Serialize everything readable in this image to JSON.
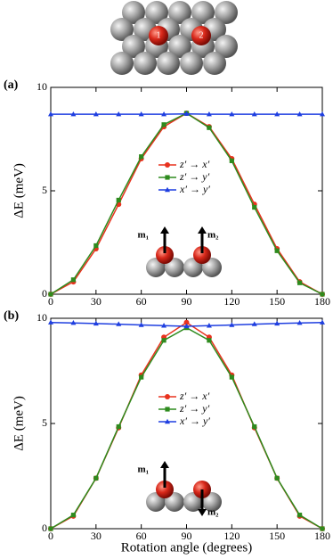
{
  "image": {
    "labels": [
      "1",
      "2"
    ]
  },
  "chart_data": [
    {
      "type": "line",
      "panel_label": "(a)",
      "ylabel": "ΔE (meV)",
      "x": [
        0,
        15,
        30,
        45,
        60,
        75,
        90,
        105,
        120,
        135,
        150,
        165,
        180
      ],
      "series": [
        {
          "name": "z′ → x′",
          "color": "#e8321e",
          "values": [
            0,
            0.6,
            2.2,
            4.35,
            6.55,
            8.1,
            8.75,
            8.1,
            6.55,
            4.35,
            2.2,
            0.6,
            0
          ]
        },
        {
          "name": "z′ → y′",
          "color": "#2e8b1e",
          "values": [
            0,
            0.7,
            2.35,
            4.55,
            6.65,
            8.2,
            8.75,
            8.05,
            6.45,
            4.2,
            2.1,
            0.55,
            0
          ]
        },
        {
          "name": "x′ → y′",
          "color": "#1f3fe0",
          "values": [
            8.7,
            8.7,
            8.7,
            8.7,
            8.7,
            8.7,
            8.72,
            8.7,
            8.7,
            8.7,
            8.7,
            8.7,
            8.7
          ]
        }
      ],
      "xlim": [
        0,
        180
      ],
      "xticks": [
        0,
        30,
        60,
        90,
        120,
        150,
        180
      ],
      "ylim": [
        0,
        10
      ],
      "yticks": [
        0,
        5,
        10
      ],
      "annotations": [
        "m₁",
        "m₂"
      ]
    },
    {
      "type": "line",
      "panel_label": "(b)",
      "ylabel": "ΔE (meV)",
      "xlabel": "Rotation angle (degrees)",
      "x": [
        0,
        15,
        30,
        45,
        60,
        75,
        90,
        105,
        120,
        135,
        150,
        165,
        180
      ],
      "series": [
        {
          "name": "z′ → x′",
          "color": "#e8321e",
          "values": [
            0,
            0.6,
            2.4,
            4.8,
            7.3,
            9.1,
            9.8,
            9.1,
            7.3,
            4.8,
            2.4,
            0.6,
            0
          ]
        },
        {
          "name": "z′ → y′",
          "color": "#2e8b1e",
          "values": [
            0,
            0.65,
            2.4,
            4.85,
            7.2,
            8.95,
            9.55,
            8.95,
            7.2,
            4.85,
            2.4,
            0.65,
            0
          ]
        },
        {
          "name": "x′ → y′",
          "color": "#1f3fe0",
          "values": [
            9.8,
            9.78,
            9.75,
            9.72,
            9.68,
            9.65,
            9.62,
            9.65,
            9.68,
            9.72,
            9.75,
            9.78,
            9.8
          ]
        }
      ],
      "xlim": [
        0,
        180
      ],
      "xticks": [
        0,
        30,
        60,
        90,
        120,
        150,
        180
      ],
      "ylim": [
        0,
        10
      ],
      "yticks": [
        0,
        5,
        10
      ],
      "annotations": [
        "m₁",
        "m₂"
      ]
    }
  ]
}
